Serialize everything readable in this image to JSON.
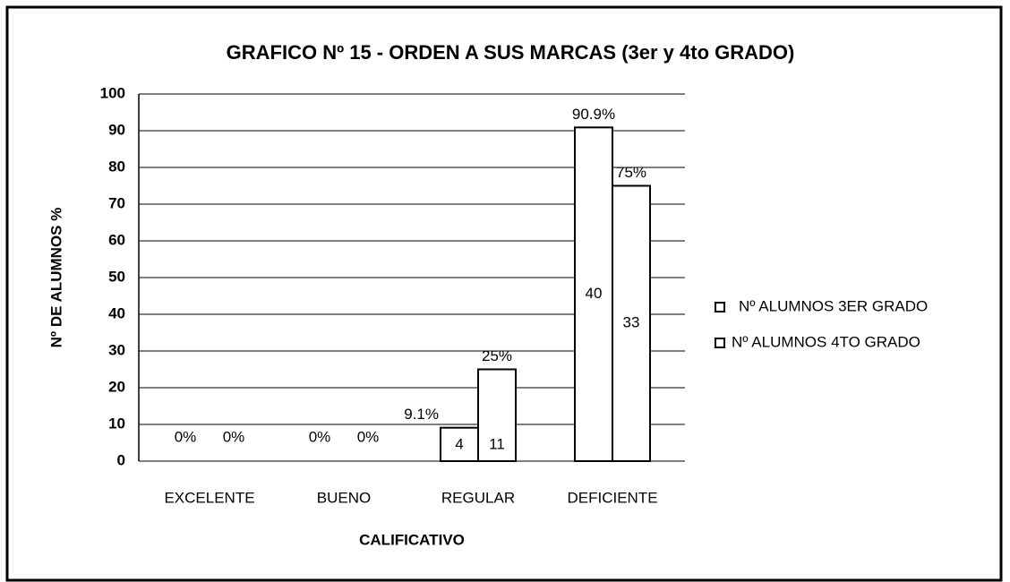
{
  "chart_data": {
    "type": "bar",
    "title": "GRAFICO Nº 15 - ORDEN A SUS MARCAS  (3er  y  4to  GRADO)",
    "x_label": "CALIFICATIVO",
    "y_label": "Nº DE ALUMNOS %",
    "categories": [
      "EXCELENTE",
      "BUENO",
      "REGULAR",
      "DEFICIENTE"
    ],
    "series": [
      {
        "name": "Nº ALUMNOS 3ER GRADO",
        "color": "#ffffff",
        "values": [
          0,
          0,
          9.1,
          90.9
        ],
        "value_labels": [
          "0%",
          "0%",
          "9.1%",
          "90.9%"
        ],
        "counts": [
          null,
          null,
          4,
          40
        ]
      },
      {
        "name": "Nº ALUMNOS 4TO GRADO",
        "color": "#ffffff",
        "values": [
          0,
          0,
          25,
          75
        ],
        "value_labels": [
          "0%",
          "0%",
          "25%",
          "75%"
        ],
        "counts": [
          null,
          null,
          11,
          33
        ]
      }
    ],
    "ylim": [
      0,
      100
    ],
    "yticks": [
      0,
      10,
      20,
      30,
      40,
      50,
      60,
      70,
      80,
      90,
      100
    ],
    "grid": true,
    "legend": "right"
  }
}
